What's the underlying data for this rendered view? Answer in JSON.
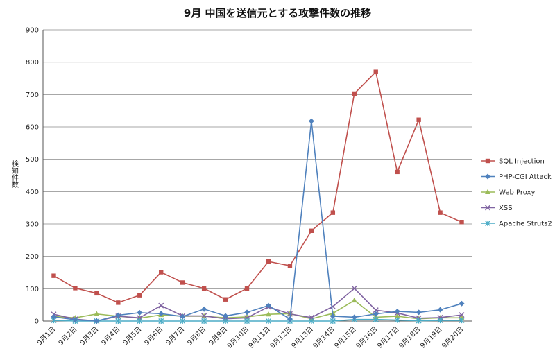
{
  "chart_data": {
    "type": "line",
    "title": "9月 中国を送信元とする攻撃件数の推移",
    "xlabel": "",
    "ylabel": "検知件数",
    "ylim": [
      0,
      900
    ],
    "yticks": [
      "0",
      "100",
      "200",
      "300",
      "400",
      "500",
      "600",
      "700",
      "800",
      "900"
    ],
    "grid": true,
    "legend_position": "right",
    "categories": [
      "9月1日",
      "9月2日",
      "9月3日",
      "9月4日",
      "9月5日",
      "9月6日",
      "9月7日",
      "9月8日",
      "9月9日",
      "9月10日",
      "9月11日",
      "9月12日",
      "9月13日",
      "9月14日",
      "9月15日",
      "9月16日",
      "9月17日",
      "9月18日",
      "9月19日",
      "9月20日"
    ],
    "series": [
      {
        "name": "SQL Injection",
        "color": "#c0504d",
        "marker": "square",
        "values": [
          140,
          102,
          86,
          57,
          80,
          151,
          119,
          101,
          67,
          101,
          184,
          171,
          279,
          335,
          703,
          770,
          461,
          622,
          335,
          306
        ]
      },
      {
        "name": "PHP-CGI Attack",
        "color": "#4f81bd",
        "marker": "diamond",
        "values": [
          13,
          4,
          0,
          18,
          26,
          23,
          14,
          37,
          16,
          27,
          48,
          6,
          618,
          15,
          12,
          22,
          30,
          27,
          35,
          54
        ]
      },
      {
        "name": "Web Proxy",
        "color": "#9bbb59",
        "marker": "triangle",
        "values": [
          14,
          10,
          22,
          15,
          9,
          19,
          15,
          15,
          10,
          13,
          21,
          23,
          7,
          24,
          64,
          12,
          15,
          7,
          10,
          10
        ]
      },
      {
        "name": "XSS",
        "color": "#8064a2",
        "marker": "x",
        "values": [
          21,
          6,
          0,
          15,
          10,
          48,
          16,
          16,
          7,
          10,
          44,
          22,
          11,
          45,
          101,
          34,
          25,
          9,
          11,
          19
        ]
      },
      {
        "name": "Apache Struts2",
        "color": "#4bacc6",
        "marker": "star",
        "values": [
          2,
          0,
          0,
          0,
          0,
          0,
          0,
          0,
          0,
          0,
          0,
          0,
          0,
          0,
          5,
          5,
          3,
          1,
          2,
          2
        ]
      }
    ]
  }
}
